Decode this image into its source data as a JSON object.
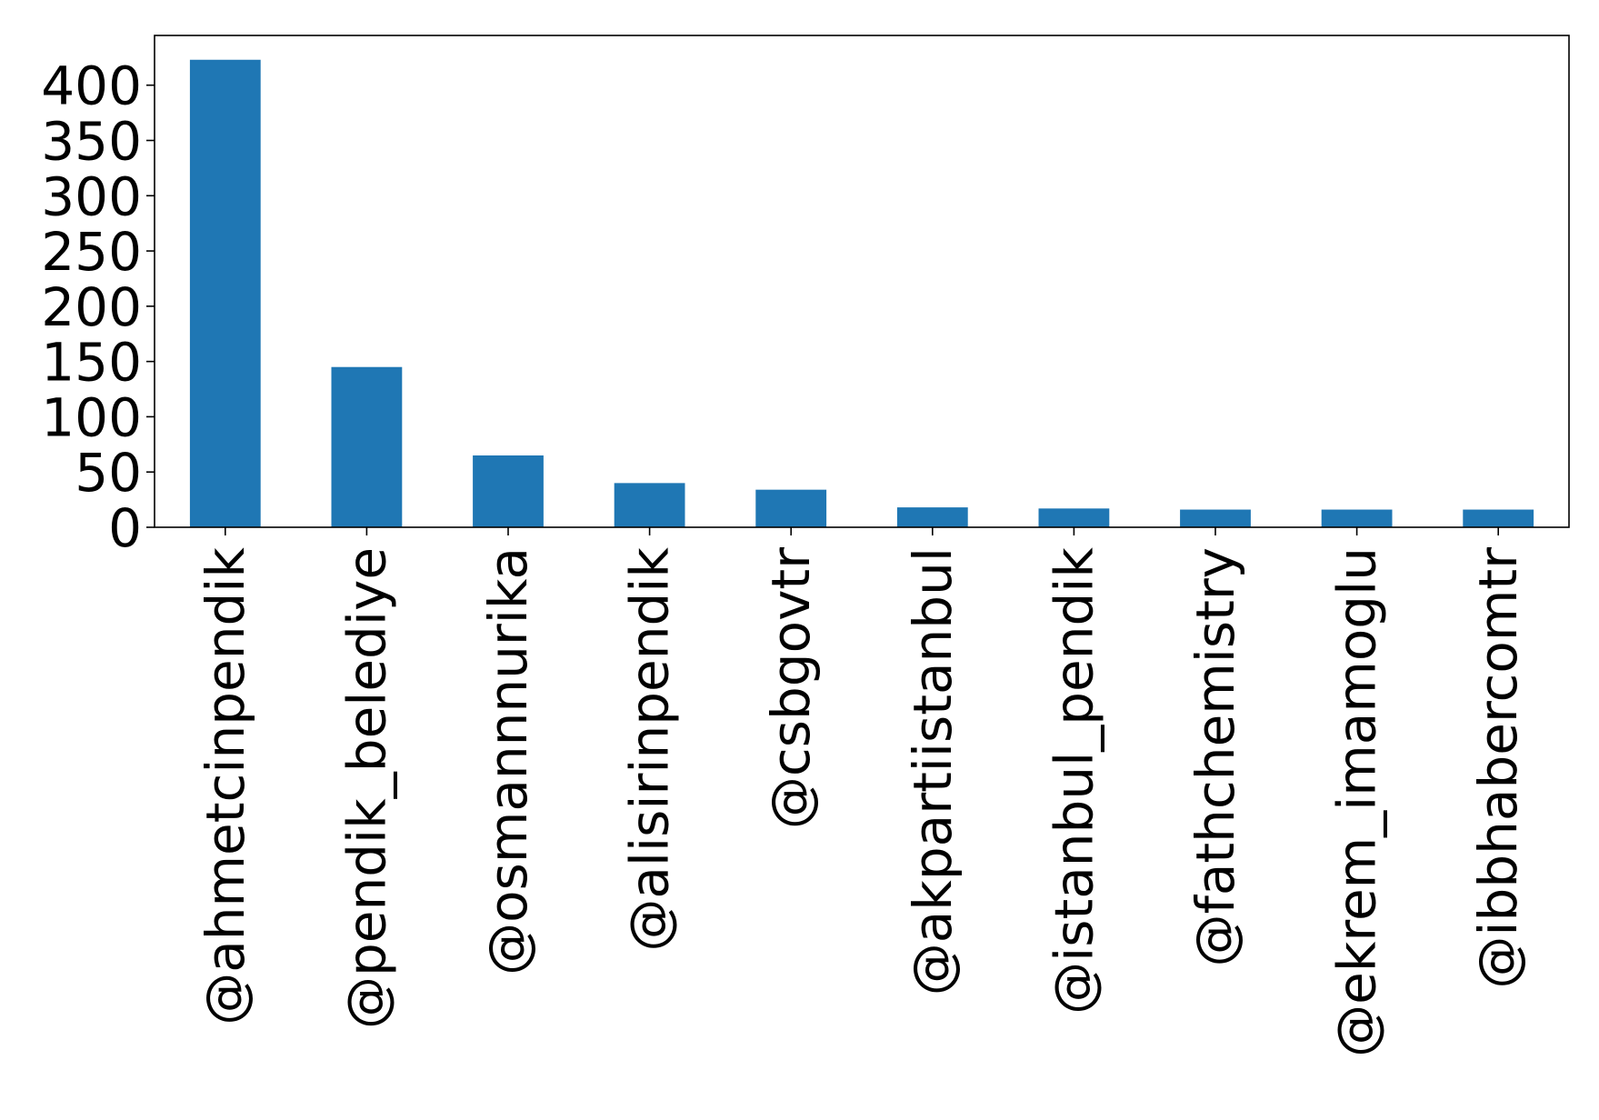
{
  "chart_data": {
    "type": "bar",
    "categories": [
      "@ahmetcinpendik",
      "@pendik_belediye",
      "@osmannnurika",
      "@alisirinpendik",
      "@csbgovtr",
      "@akpartiistanbul",
      "@istanbul_pendik",
      "@fathchemistry",
      "@ekrem_imamoglu",
      "@ibbhabercomtr"
    ],
    "values": [
      423,
      145,
      65,
      40,
      34,
      18,
      17,
      16,
      16,
      16
    ],
    "title": "",
    "xlabel": "",
    "ylabel": "",
    "ylim": [
      0,
      445
    ],
    "yticks": [
      0,
      50,
      100,
      150,
      200,
      250,
      300,
      350,
      400
    ],
    "bar_color": "#1f77b4",
    "grid": false,
    "legend": "none"
  }
}
